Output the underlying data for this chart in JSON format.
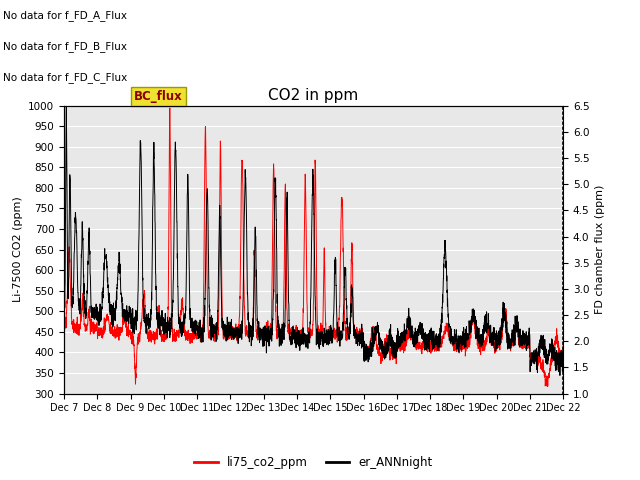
{
  "title": "CO2 in ppm",
  "ylabel_left": "Li-7500 CO2 (ppm)",
  "ylabel_right": "FD chamber flux (ppm)",
  "ylim_left": [
    300,
    1000
  ],
  "ylim_right": [
    1.0,
    6.5
  ],
  "xtick_labels": [
    "Dec 7",
    "Dec 8",
    "Dec 9",
    "Dec 10",
    "Dec 11",
    "Dec 12",
    "Dec 13",
    "Dec 14",
    "Dec 15",
    "Dec 16",
    "Dec 17",
    "Dec 18",
    "Dec 19",
    "Dec 20",
    "Dec 21",
    "Dec 22"
  ],
  "legend_labels": [
    "li75_co2_ppm",
    "er_ANNnight"
  ],
  "annotations": [
    "No data for f_FD_A_Flux",
    "No data for f_FD_B_Flux",
    "No data for f_FD_C_Flux"
  ],
  "bc_flux_label": "BC_flux",
  "bg_color": "#e8e8e8",
  "title_fontsize": 11,
  "left_yticks": [
    300,
    350,
    400,
    450,
    500,
    550,
    600,
    650,
    700,
    750,
    800,
    850,
    900,
    950,
    1000
  ],
  "right_yticks": [
    1.0,
    1.5,
    2.0,
    2.5,
    3.0,
    3.5,
    4.0,
    4.5,
    5.0,
    5.5,
    6.0,
    6.5
  ]
}
